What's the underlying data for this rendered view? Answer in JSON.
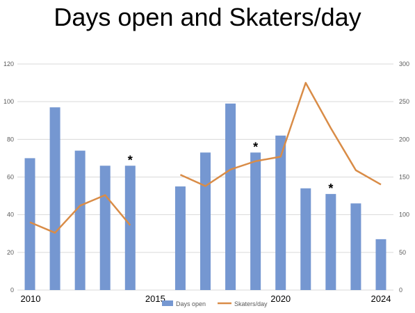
{
  "chart_data": {
    "type": "bar",
    "title": "Days open and Skaters/day",
    "xlabel": "",
    "ylabel": "",
    "years": [
      2010,
      2011,
      2012,
      2013,
      2014,
      2015,
      2016,
      2017,
      2018,
      2019,
      2020,
      2021,
      2022,
      2023,
      2024
    ],
    "x_tick_labels": [
      {
        "year": 2010,
        "label": "2010"
      },
      {
        "year": 2015,
        "label": "2015"
      },
      {
        "year": 2020,
        "label": "2020"
      },
      {
        "year": 2024,
        "label": "2024"
      }
    ],
    "series": [
      {
        "name": "Days open",
        "type": "bar",
        "axis": "left",
        "color": "#7597d1",
        "values": [
          70,
          97,
          74,
          66,
          66,
          null,
          55,
          73,
          99,
          73,
          82,
          54,
          51,
          46,
          27
        ]
      },
      {
        "name": "Skaters/day",
        "type": "line",
        "axis": "right",
        "color": "#d98c47",
        "values": [
          90,
          76,
          112,
          126,
          86,
          null,
          153,
          138,
          160,
          171,
          177,
          275,
          215,
          159,
          140
        ]
      }
    ],
    "y_left": {
      "min": 0,
      "max": 120,
      "ticks": [
        0,
        20,
        40,
        60,
        80,
        100,
        120
      ]
    },
    "y_right": {
      "min": 0,
      "max": 300,
      "ticks": [
        0,
        50,
        100,
        150,
        200,
        250,
        300
      ]
    },
    "annotations": [
      {
        "text": "*",
        "year": 2014
      },
      {
        "text": "*",
        "year": 2019
      },
      {
        "text": "*",
        "year": 2022
      }
    ],
    "grid": true,
    "legend_position": "bottom"
  }
}
